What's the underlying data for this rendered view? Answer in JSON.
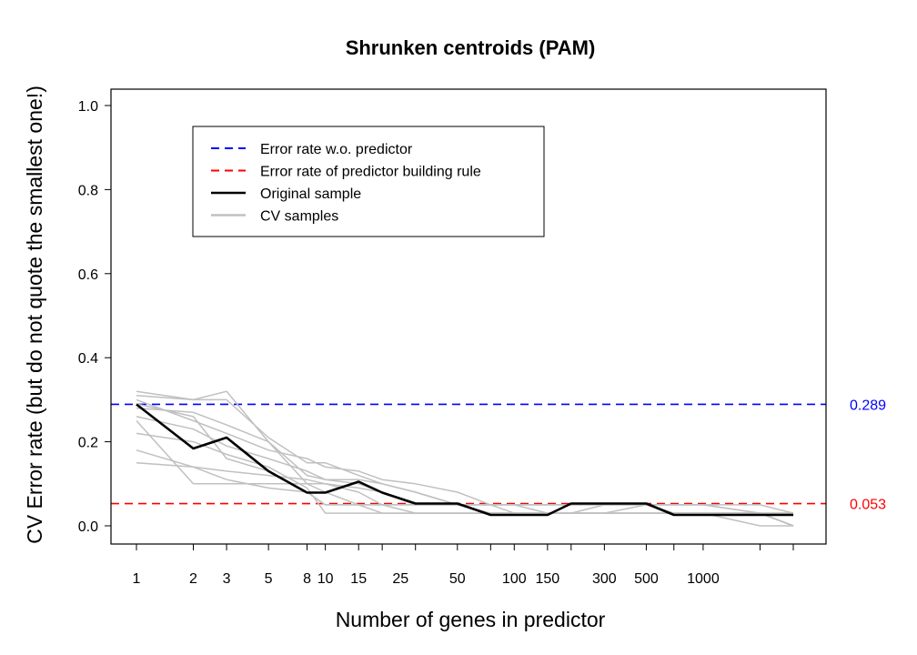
{
  "chart_data": {
    "type": "line",
    "title": "Shrunken centroids (PAM)",
    "xlabel": "Number of genes in predictor",
    "ylabel": "CV Error rate (but do not quote the smallest one!)",
    "ylim": [
      0,
      1
    ],
    "y_ticks": [
      "0.0",
      "0.2",
      "0.4",
      "0.6",
      "0.8",
      "1.0"
    ],
    "x_tick_labels": [
      "1",
      "2",
      "3",
      "5",
      "8",
      "10",
      "15",
      "25",
      "50",
      "100",
      "150",
      "300",
      "500",
      "1000"
    ],
    "x_positions": [
      1,
      2,
      3,
      5,
      8,
      10,
      15,
      20,
      30,
      50,
      75,
      100,
      150,
      200,
      300,
      500,
      700,
      1000,
      2000,
      3000
    ],
    "grid": false,
    "legend_position": "top-left",
    "legend": [
      {
        "label": "Error rate w.o. predictor",
        "color": "#0000ff",
        "dash": true
      },
      {
        "label": "Error rate of predictor building rule",
        "color": "#ff0000",
        "dash": true
      },
      {
        "label": "Original sample",
        "color": "#000000",
        "dash": false
      },
      {
        "label": "CV samples",
        "color": "#c0c0c0",
        "dash": false
      }
    ],
    "reference_lines": [
      {
        "name": "Error rate w.o. predictor",
        "value": 0.289,
        "label": "0.289",
        "color": "#0000ff"
      },
      {
        "name": "Error rate of predictor building rule",
        "value": 0.053,
        "label": "0.053",
        "color": "#ff0000"
      }
    ],
    "series": [
      {
        "name": "Original sample",
        "color": "#000000",
        "values": [
          0.289,
          0.184,
          0.21,
          0.13,
          0.079,
          0.079,
          0.105,
          0.079,
          0.053,
          0.053,
          0.026,
          0.026,
          0.026,
          0.053,
          0.053,
          0.053,
          0.026,
          0.026,
          0.026,
          0.026
        ]
      },
      {
        "name": "CV samples",
        "color": "#c0c0c0",
        "values": [
          0.32,
          0.3,
          0.32,
          0.2,
          0.12,
          0.11,
          0.1,
          0.08,
          0.05,
          0.05,
          0.03,
          0.03,
          0.03,
          0.03,
          0.05,
          0.05,
          0.03,
          0.03,
          0.03,
          0.0
        ]
      },
      {
        "values": [
          0.3,
          0.25,
          0.22,
          0.18,
          0.16,
          0.14,
          0.13,
          0.11,
          0.1,
          0.08,
          0.05,
          0.05,
          0.05,
          0.05,
          0.05,
          0.05,
          0.05,
          0.05,
          0.03,
          0.03
        ]
      },
      {
        "values": [
          0.28,
          0.27,
          0.24,
          0.2,
          0.1,
          0.08,
          0.05,
          0.05,
          0.03,
          0.03,
          0.03,
          0.03,
          0.03,
          0.03,
          0.03,
          0.03,
          0.03,
          0.03,
          0.03,
          0.0
        ]
      },
      {
        "values": [
          0.26,
          0.23,
          0.19,
          0.16,
          0.13,
          0.11,
          0.11,
          0.1,
          0.08,
          0.05,
          0.05,
          0.05,
          0.03,
          0.03,
          0.03,
          0.03,
          0.03,
          0.03,
          0.03,
          0.03
        ]
      },
      {
        "values": [
          0.22,
          0.2,
          0.17,
          0.14,
          0.09,
          0.03,
          0.03,
          0.03,
          0.03,
          0.03,
          0.03,
          0.03,
          0.03,
          0.03,
          0.03,
          0.03,
          0.03,
          0.03,
          0.0,
          0.0
        ]
      },
      {
        "values": [
          0.18,
          0.14,
          0.11,
          0.09,
          0.08,
          0.05,
          0.05,
          0.05,
          0.05,
          0.05,
          0.05,
          0.05,
          0.05,
          0.05,
          0.05,
          0.05,
          0.03,
          0.03,
          0.03,
          0.03
        ]
      },
      {
        "values": [
          0.15,
          0.14,
          0.13,
          0.12,
          0.11,
          0.1,
          0.09,
          0.08,
          0.05,
          0.05,
          0.05,
          0.03,
          0.03,
          0.03,
          0.03,
          0.05,
          0.05,
          0.05,
          0.05,
          0.03
        ]
      },
      {
        "values": [
          0.25,
          0.1,
          0.1,
          0.1,
          0.1,
          0.1,
          0.08,
          0.05,
          0.05,
          0.05,
          0.03,
          0.03,
          0.03,
          0.03,
          0.03,
          0.03,
          0.03,
          0.03,
          0.03,
          0.0
        ]
      },
      {
        "values": [
          0.29,
          0.26,
          0.16,
          0.13,
          0.08,
          0.05,
          0.05,
          0.03,
          0.03,
          0.03,
          0.03,
          0.03,
          0.03,
          0.03,
          0.03,
          0.03,
          0.03,
          0.03,
          0.03,
          0.0
        ]
      },
      {
        "values": [
          0.31,
          0.3,
          0.3,
          0.21,
          0.15,
          0.15,
          0.12,
          0.1,
          0.08,
          0.05,
          0.05,
          0.05,
          0.05,
          0.05,
          0.05,
          0.05,
          0.05,
          0.05,
          0.03,
          0.0
        ]
      }
    ]
  }
}
